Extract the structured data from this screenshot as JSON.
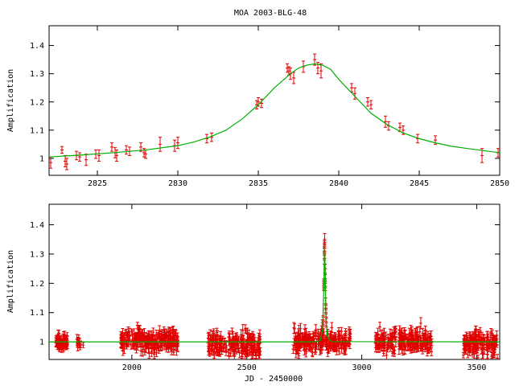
{
  "title": "MOA 2003-BLG-48",
  "colors": {
    "data": "#e00000",
    "model": "#00b000",
    "axis": "#000000",
    "background": "#ffffff"
  },
  "chart_data": [
    {
      "type": "scatter",
      "title": "MOA 2003-BLG-48",
      "xlabel": "",
      "ylabel": "Amplification",
      "xlim": [
        2822,
        2850
      ],
      "ylim": [
        0.94,
        1.47
      ],
      "xticks": [
        2825,
        2830,
        2835,
        2840,
        2845,
        2850
      ],
      "xtick_labels": [
        "2825",
        "2830",
        "2835",
        "2840",
        "2845",
        "2850"
      ],
      "yticks": [
        1.0,
        1.1,
        1.2,
        1.3,
        1.4
      ],
      "ytick_labels": [
        "1",
        "1.1",
        "1.2",
        "1.3",
        "1.4"
      ],
      "grid": false,
      "legend": "none",
      "model": {
        "name": "",
        "x": [
          2822,
          2824,
          2826,
          2828,
          2830,
          2831,
          2832,
          2833,
          2834,
          2835,
          2836,
          2837,
          2837.5,
          2838,
          2838.5,
          2839,
          2839.5,
          2840,
          2841,
          2842,
          2843,
          2844,
          2845,
          2846,
          2847,
          2848,
          2850
        ],
        "y": [
          1.005,
          1.012,
          1.02,
          1.03,
          1.045,
          1.058,
          1.076,
          1.1,
          1.14,
          1.19,
          1.25,
          1.3,
          1.32,
          1.33,
          1.335,
          1.33,
          1.315,
          1.28,
          1.22,
          1.16,
          1.12,
          1.09,
          1.07,
          1.055,
          1.043,
          1.035,
          1.02
        ]
      },
      "points": {
        "name": "",
        "x": [
          2822.1,
          2822.8,
          2823.0,
          2823.1,
          2823.7,
          2823.9,
          2824.3,
          2824.9,
          2825.1,
          2825.9,
          2826.1,
          2826.2,
          2826.8,
          2827.0,
          2827.7,
          2827.9,
          2828.0,
          2828.9,
          2829.8,
          2830.0,
          2831.8,
          2832.1,
          2834.9,
          2835.0,
          2835.2,
          2836.8,
          2836.9,
          2837.0,
          2837.2,
          2837.8,
          2838.5,
          2838.7,
          2838.9,
          2840.8,
          2841.0,
          2841.8,
          2842.0,
          2842.9,
          2843.1,
          2843.8,
          2844.0,
          2844.9,
          2846.0,
          2848.9,
          2849.9
        ],
        "y": [
          0.985,
          1.03,
          0.99,
          0.98,
          1.01,
          1.005,
          0.995,
          1.015,
          1.01,
          1.04,
          1.02,
          1.01,
          1.03,
          1.025,
          1.04,
          1.02,
          1.015,
          1.05,
          1.045,
          1.055,
          1.07,
          1.075,
          1.19,
          1.2,
          1.195,
          1.32,
          1.31,
          1.3,
          1.285,
          1.325,
          1.35,
          1.32,
          1.31,
          1.25,
          1.23,
          1.2,
          1.19,
          1.13,
          1.115,
          1.11,
          1.1,
          1.07,
          1.065,
          1.01,
          1.02
        ],
        "err": [
          0.02,
          0.012,
          0.02,
          0.02,
          0.015,
          0.015,
          0.02,
          0.015,
          0.02,
          0.015,
          0.018,
          0.02,
          0.015,
          0.015,
          0.015,
          0.015,
          0.015,
          0.025,
          0.02,
          0.02,
          0.015,
          0.015,
          0.015,
          0.015,
          0.015,
          0.015,
          0.015,
          0.02,
          0.02,
          0.02,
          0.02,
          0.02,
          0.025,
          0.015,
          0.02,
          0.015,
          0.015,
          0.02,
          0.015,
          0.015,
          0.015,
          0.015,
          0.015,
          0.025,
          0.015
        ]
      }
    },
    {
      "type": "scatter",
      "title": "",
      "xlabel": "JD - 2450000",
      "ylabel": "Amplification",
      "xlim": [
        1640,
        3600
      ],
      "ylim": [
        0.94,
        1.47
      ],
      "xticks": [
        2000,
        2500,
        3000,
        3500
      ],
      "xtick_labels": [
        "2000",
        "2500",
        "3000",
        "3500"
      ],
      "yticks": [
        1.0,
        1.1,
        1.2,
        1.3,
        1.4
      ],
      "ytick_labels": [
        "1",
        "1.1",
        "1.2",
        "1.3",
        "1.4"
      ],
      "grid": false,
      "legend": "none",
      "model": {
        "name": "",
        "x": [
          1640,
          2800,
          2810,
          2820,
          2830,
          2835,
          2838,
          2840,
          2845,
          2850,
          2860,
          2870,
          3600
        ],
        "y": [
          1.0,
          1.0,
          1.002,
          1.005,
          1.045,
          1.19,
          1.33,
          1.28,
          1.07,
          1.02,
          1.008,
          1.001,
          1.0
        ]
      },
      "seasons": [
        {
          "x_start": 1670,
          "x_end": 1720,
          "mean": 1.0,
          "scatter": 0.012,
          "count": 60
        },
        {
          "x_start": 1760,
          "x_end": 1800,
          "mean": 0.998,
          "scatter": 0.008,
          "count": 12
        },
        {
          "x_start": 1950,
          "x_end": 2200,
          "mean": 1.003,
          "scatter": 0.018,
          "count": 230
        },
        {
          "x_start": 2330,
          "x_end": 2560,
          "mean": 0.99,
          "scatter": 0.022,
          "count": 190
        },
        {
          "x_start": 2700,
          "x_end": 2950,
          "mean": 1.0,
          "scatter": 0.018,
          "count": 220
        },
        {
          "x_start": 3060,
          "x_end": 3310,
          "mean": 1.0,
          "scatter": 0.02,
          "count": 210
        },
        {
          "x_start": 3440,
          "x_end": 3590,
          "mean": 0.995,
          "scatter": 0.02,
          "count": 150
        }
      ]
    }
  ]
}
